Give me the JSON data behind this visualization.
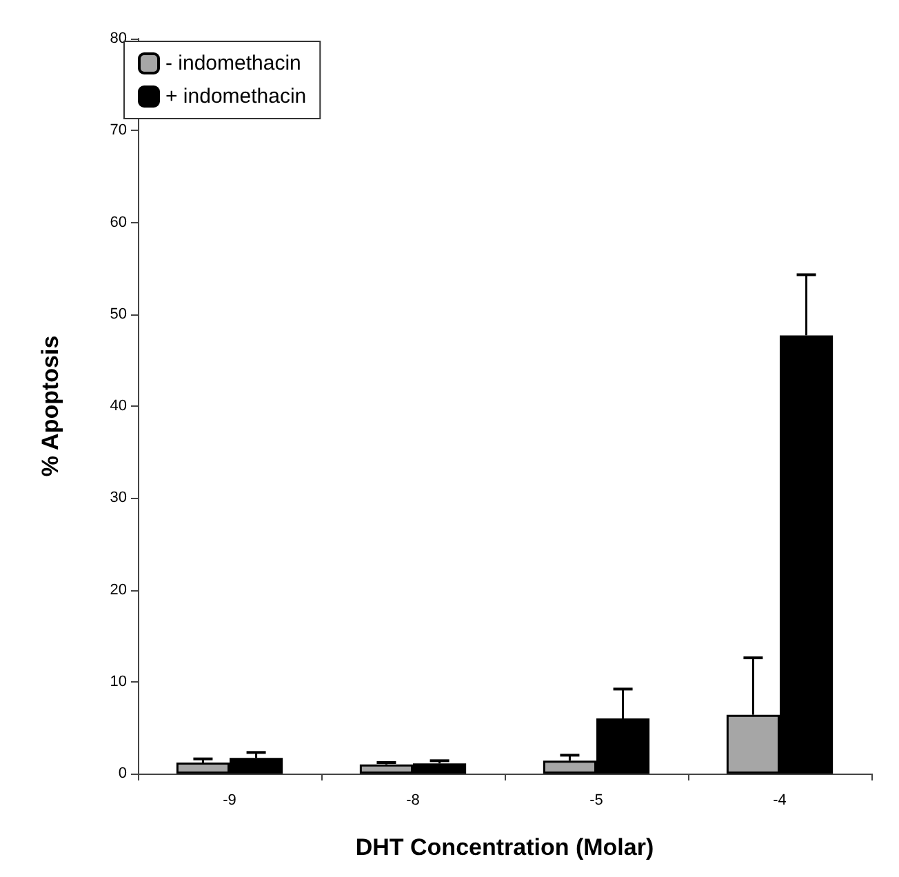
{
  "chart_data": {
    "type": "bar",
    "xlabel": "DHT Concentration (Molar)",
    "ylabel": "% Apoptosis",
    "categories": [
      "-9",
      "-8",
      "-5",
      "-4"
    ],
    "series": [
      {
        "name": "- indomethacin",
        "color": "#a6a6a6",
        "values": [
          1.2,
          1.0,
          1.4,
          6.4
        ],
        "errors": [
          [
            1.2,
            1.6
          ],
          [
            1.0,
            1.2
          ],
          [
            1.4,
            2.0
          ],
          [
            6.4,
            12.6
          ]
        ]
      },
      {
        "name": "+ indomethacin",
        "color": "#000000",
        "values": [
          1.7,
          1.1,
          6.0,
          47.7
        ],
        "errors": [
          [
            1.7,
            2.3
          ],
          [
            1.1,
            1.4
          ],
          [
            6.0,
            9.2
          ],
          [
            47.7,
            54.3
          ]
        ]
      }
    ],
    "ylim": [
      0,
      80
    ],
    "yticks": [
      0,
      10,
      20,
      30,
      40,
      50,
      60,
      70,
      80
    ],
    "grid": false,
    "legend": "top left"
  }
}
